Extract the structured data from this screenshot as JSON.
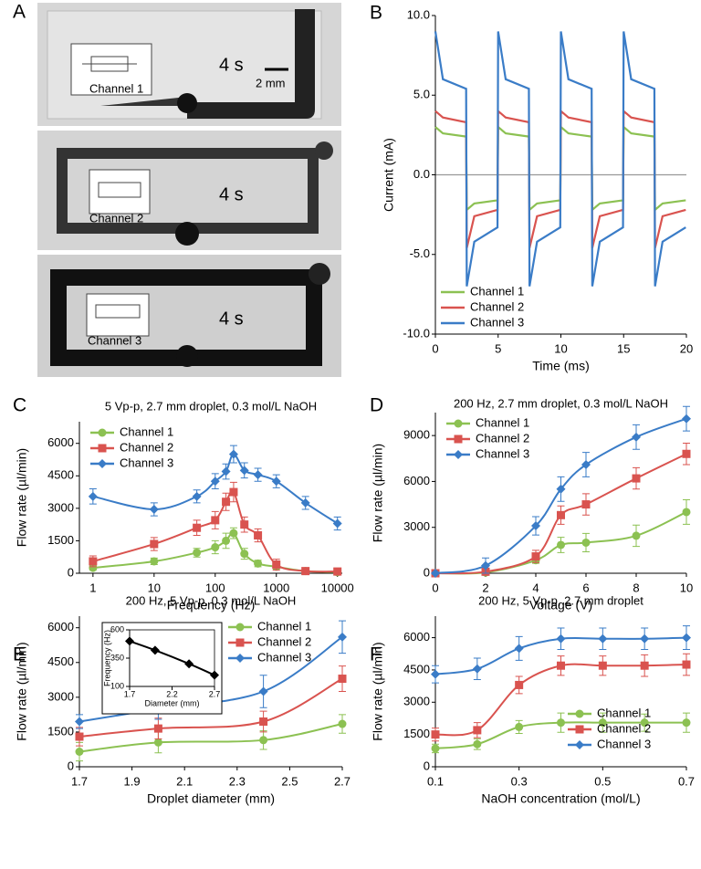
{
  "photos": {
    "panel": "A",
    "scale_bar": "2 mm",
    "frames": [
      {
        "time": "4 s",
        "label": "Channel 1"
      },
      {
        "time": "4 s",
        "label": "Channel 2"
      },
      {
        "time": "4 s",
        "label": "Channel 3"
      }
    ]
  },
  "chart_data": [
    {
      "type": "line",
      "panel": "B",
      "x_label": "Time (ms)",
      "y_label": "Current (mA)",
      "xlim": [
        0,
        20
      ],
      "xticks": [
        0,
        5,
        10,
        15,
        20
      ],
      "ylim": [
        -10,
        10
      ],
      "yticks": [
        {
          "value": 10,
          "label": "10.0"
        },
        {
          "value": 5,
          "label": "5.0"
        },
        {
          "value": 0,
          "label": "0.0"
        },
        {
          "value": -5,
          "label": "-5.0"
        },
        {
          "value": -10,
          "label": "-10.0"
        }
      ],
      "zero_line": true,
      "legend": "lower left",
      "x": [
        0,
        0.6,
        2.45,
        2.5,
        3.1,
        4.95,
        5,
        5.6,
        7.45,
        7.5,
        8.1,
        9.95,
        10,
        10.6,
        12.45,
        12.5,
        13.1,
        14.95,
        15,
        15.6,
        17.45,
        17.5,
        18.1,
        19.95
      ],
      "series": [
        {
          "name": "Channel 1",
          "color": "#8cc152",
          "values": [
            3.0,
            2.6,
            2.4,
            -2.2,
            -1.8,
            -1.6,
            3.0,
            2.6,
            2.4,
            -2.2,
            -1.8,
            -1.6,
            3.0,
            2.6,
            2.4,
            -2.2,
            -1.8,
            -1.6,
            3.0,
            2.6,
            2.4,
            -2.2,
            -1.8,
            -1.6
          ]
        },
        {
          "name": "Channel 2",
          "color": "#d9534f",
          "values": [
            4.0,
            3.6,
            3.3,
            -4.6,
            -2.6,
            -2.2,
            4.0,
            3.6,
            3.3,
            -4.6,
            -2.6,
            -2.2,
            4.0,
            3.6,
            3.3,
            -4.6,
            -2.6,
            -2.2,
            4.0,
            3.6,
            3.3,
            -4.6,
            -2.6,
            -2.2
          ]
        },
        {
          "name": "Channel 3",
          "color": "#3a7cc7",
          "values": [
            9.0,
            6.0,
            5.4,
            -7.0,
            -4.2,
            -3.3,
            9.0,
            6.0,
            5.4,
            -7.0,
            -4.2,
            -3.3,
            9.0,
            6.0,
            5.4,
            -7.0,
            -4.2,
            -3.3,
            9.0,
            6.0,
            5.4,
            -7.0,
            -4.2,
            -3.3
          ]
        }
      ]
    },
    {
      "type": "line",
      "panel": "C",
      "title": "5 Vp-p, 2.7 mm droplet, 0.3 mol/L NaOH",
      "x_label": "Frequency (Hz)",
      "y_label": "Flow rate (µl/min)",
      "log_x": true,
      "xlim": [
        0.6,
        12000
      ],
      "xticks": [
        1,
        10,
        100,
        1000,
        10000
      ],
      "ylim": [
        0,
        7000
      ],
      "yticks": [
        0,
        1500,
        3000,
        4500,
        6000
      ],
      "legend": "upper left",
      "x": [
        1,
        10,
        50,
        100,
        150,
        200,
        300,
        500,
        1000,
        3000,
        10000
      ],
      "series": [
        {
          "name": "Channel 1",
          "color": "#8cc152",
          "marker": "circle",
          "values": [
            250,
            550,
            950,
            1200,
            1500,
            1850,
            900,
            450,
            300,
            100,
            50
          ],
          "errors": [
            100,
            150,
            200,
            300,
            350,
            250,
            250,
            150,
            100,
            80,
            50
          ]
        },
        {
          "name": "Channel 2",
          "color": "#d9534f",
          "marker": "square",
          "values": [
            550,
            1350,
            2100,
            2450,
            3300,
            3750,
            2250,
            1750,
            400,
            100,
            80
          ],
          "errors": [
            250,
            300,
            350,
            400,
            400,
            450,
            350,
            300,
            250,
            100,
            80
          ]
        },
        {
          "name": "Channel 3",
          "color": "#3a7cc7",
          "marker": "diamond",
          "values": [
            3550,
            2950,
            3550,
            4250,
            4700,
            5500,
            4750,
            4550,
            4250,
            3250,
            2300
          ],
          "errors": [
            350,
            300,
            300,
            350,
            350,
            400,
            350,
            300,
            300,
            300,
            300
          ]
        }
      ]
    },
    {
      "type": "line",
      "panel": "D",
      "title": "200 Hz, 2.7 mm droplet, 0.3 mol/L NaOH",
      "x_label": "Voltage (V)",
      "y_label": "Flow rate (µl/min)",
      "xlim": [
        0,
        10
      ],
      "xticks": [
        0,
        2,
        4,
        6,
        8,
        10
      ],
      "ylim": [
        0,
        10500
      ],
      "yticks": [
        0,
        3000,
        6000,
        9000
      ],
      "legend": "upper left",
      "x": [
        0,
        2,
        4,
        5,
        6,
        8,
        10
      ],
      "series": [
        {
          "name": "Channel 1",
          "color": "#8cc152",
          "marker": "circle",
          "values": [
            0,
            50,
            850,
            1850,
            2000,
            2450,
            4000
          ],
          "errors": [
            50,
            100,
            200,
            500,
            600,
            700,
            800
          ]
        },
        {
          "name": "Channel 2",
          "color": "#d9534f",
          "marker": "square",
          "values": [
            0,
            100,
            1100,
            3800,
            4500,
            6200,
            7800
          ],
          "errors": [
            50,
            150,
            400,
            600,
            700,
            700,
            700
          ]
        },
        {
          "name": "Channel 3",
          "color": "#3a7cc7",
          "marker": "diamond",
          "values": [
            0,
            500,
            3100,
            5500,
            7100,
            8900,
            10100
          ],
          "errors": [
            50,
            500,
            600,
            800,
            800,
            800,
            800
          ]
        }
      ]
    },
    {
      "type": "line",
      "panel": "E",
      "title": "200 Hz, 5 Vp-p, 0.3 mol/L NaOH",
      "x_label": "Droplet diameter (mm)",
      "y_label": "Flow rate (µl/min)",
      "xlim": [
        1.7,
        2.7
      ],
      "xticks": [
        1.7,
        1.9,
        2.1,
        2.3,
        2.5,
        2.7
      ],
      "ylim": [
        0,
        6500
      ],
      "yticks": [
        0,
        1500,
        3000,
        4500,
        6000
      ],
      "legend": "upper right",
      "x": [
        1.7,
        2.0,
        2.4,
        2.7
      ],
      "series": [
        {
          "name": "Channel 1",
          "color": "#8cc152",
          "marker": "circle",
          "values": [
            650,
            1050,
            1150,
            1850
          ],
          "errors": [
            400,
            450,
            400,
            400
          ]
        },
        {
          "name": "Channel 2",
          "color": "#d9534f",
          "marker": "square",
          "values": [
            1300,
            1650,
            1950,
            3800
          ],
          "errors": [
            400,
            450,
            450,
            550
          ]
        },
        {
          "name": "Channel 3",
          "color": "#3a7cc7",
          "marker": "diamond",
          "values": [
            1950,
            2500,
            3250,
            5600
          ],
          "errors": [
            300,
            450,
            700,
            700
          ]
        }
      ]
    },
    {
      "type": "line",
      "inset": true,
      "x_label": "Diameter (mm)",
      "y_label": "Frequency (Hz)",
      "xlim": [
        1.7,
        2.7
      ],
      "xticks": [
        1.7,
        2.2,
        2.7
      ],
      "ylim": [
        100,
        600
      ],
      "yticks": [
        100,
        350,
        600
      ],
      "x": [
        1.7,
        2.0,
        2.4,
        2.7
      ],
      "series": [
        {
          "color": "#000000",
          "marker": "diamond",
          "values": [
            500,
            420,
            300,
            200
          ]
        }
      ]
    },
    {
      "type": "line",
      "panel": "F",
      "title": "200 Hz, 5 Vp-p, 2.7 mm droplet",
      "x_label": "NaOH concentration (mol/L)",
      "y_label": "Flow rate (µl/min)",
      "xlim": [
        0.1,
        0.7
      ],
      "xticks": [
        0.1,
        0.3,
        0.5,
        0.7
      ],
      "ylim": [
        0,
        7000
      ],
      "yticks": [
        0,
        1500,
        3000,
        4500,
        6000
      ],
      "legend": "lower right",
      "x": [
        0.1,
        0.2,
        0.3,
        0.4,
        0.5,
        0.6,
        0.7
      ],
      "series": [
        {
          "name": "Channel 1",
          "color": "#8cc152",
          "marker": "circle",
          "values": [
            850,
            1050,
            1850,
            2050,
            2050,
            2050,
            2050
          ],
          "errors": [
            200,
            250,
            300,
            450,
            450,
            400,
            450
          ]
        },
        {
          "name": "Channel 2",
          "color": "#d9534f",
          "marker": "square",
          "values": [
            1500,
            1700,
            3800,
            4700,
            4700,
            4700,
            4750
          ],
          "errors": [
            300,
            350,
            400,
            450,
            450,
            500,
            500
          ]
        },
        {
          "name": "Channel 3",
          "color": "#3a7cc7",
          "marker": "diamond",
          "values": [
            4300,
            4550,
            5500,
            5950,
            5950,
            5950,
            6000
          ],
          "errors": [
            400,
            500,
            550,
            500,
            500,
            500,
            550
          ]
        }
      ]
    }
  ]
}
